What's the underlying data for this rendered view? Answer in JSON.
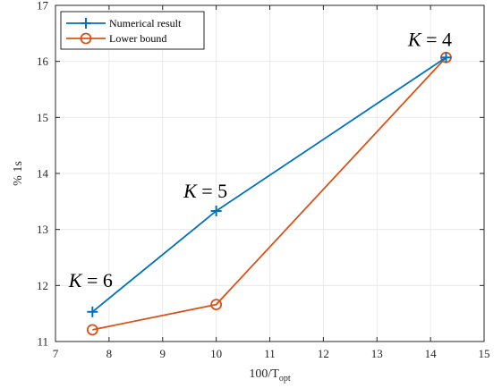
{
  "chart_data": {
    "type": "line",
    "title": "",
    "xlabel": "100/T",
    "xlabel_subscript": "opt",
    "ylabel": "% 1s",
    "xlim": [
      7,
      15
    ],
    "ylim": [
      11,
      17
    ],
    "xticks": [
      7,
      8,
      9,
      10,
      11,
      12,
      13,
      14,
      15
    ],
    "yticks": [
      11,
      12,
      13,
      14,
      15,
      16,
      17
    ],
    "grid": true,
    "legend_position": "top-left",
    "series": [
      {
        "name": "Numerical result",
        "color": "#0072BD",
        "marker": "plus",
        "x": [
          7.69,
          10.0,
          14.29
        ],
        "y": [
          11.53,
          13.33,
          16.07
        ]
      },
      {
        "name": "Lower bound",
        "color": "#D95319",
        "marker": "circle",
        "x": [
          7.69,
          10.0,
          14.29
        ],
        "y": [
          11.21,
          11.66,
          16.07
        ]
      }
    ],
    "annotations": [
      {
        "text": "K = 6",
        "x": 7.69,
        "y": 11.53
      },
      {
        "text": "K = 5",
        "x": 10.0,
        "y": 13.33
      },
      {
        "text": "K = 4",
        "x": 14.29,
        "y": 16.07
      }
    ]
  }
}
